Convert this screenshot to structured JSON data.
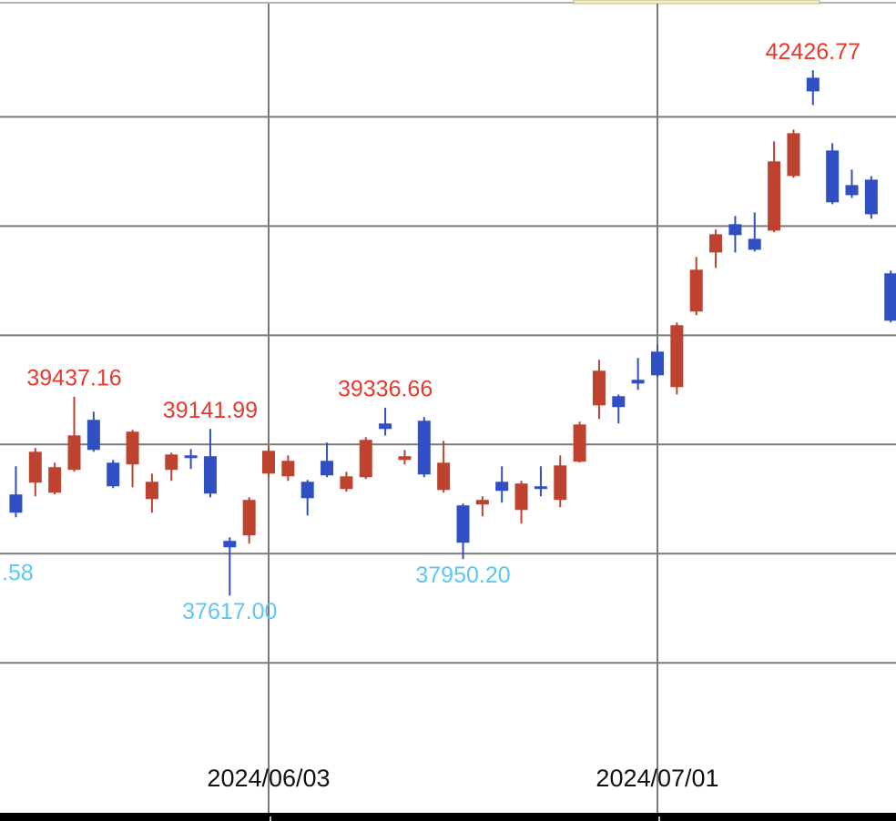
{
  "chart_data": {
    "type": "candlestick",
    "categories": [
      null,
      null,
      null,
      null,
      null,
      null,
      null,
      null,
      null,
      null,
      null,
      null,
      null,
      "2024/06/03",
      null,
      null,
      null,
      null,
      null,
      null,
      null,
      null,
      null,
      null,
      null,
      null,
      null,
      null,
      null,
      null,
      null,
      null,
      null,
      "2024/07/01",
      null,
      null,
      null,
      null,
      null,
      null,
      null,
      null,
      null,
      null,
      null,
      null
    ],
    "open": [
      38542,
      38650,
      38558,
      38767,
      39225,
      38833,
      38817,
      38500,
      38767,
      38900,
      38892,
      38117,
      38167,
      38733,
      38708,
      38658,
      38850,
      38592,
      38700,
      39192,
      38858,
      39217,
      38583,
      38442,
      38450,
      38658,
      38400,
      38617,
      38492,
      38842,
      39358,
      39442,
      39592,
      39850,
      39525,
      40217,
      40758,
      41017,
      40883,
      40958,
      41458,
      42358,
      41692,
      41375,
      41425,
      40567
    ],
    "high": [
      38800,
      38967,
      38833,
      39437.16,
      39300,
      38858,
      39133,
      38733,
      38925,
      38958,
      39141.99,
      38150,
      38517,
      38983,
      38900,
      38675,
      39017,
      38750,
      39067,
      39336.66,
      38950,
      39250,
      39033,
      38458,
      38525,
      38800,
      38667,
      38800,
      38900,
      39208,
      39775,
      39458,
      39792,
      39917,
      40117,
      40717,
      40967,
      41092,
      41125,
      41775,
      41883,
      42426.77,
      41758,
      41517,
      41458,
      40592
    ],
    "low": [
      38333,
      38525,
      38542,
      38750,
      38933,
      38600,
      38608,
      38375,
      38667,
      38775,
      38517,
      37617,
      38092,
      38708,
      38667,
      38350,
      38700,
      38567,
      38683,
      39083,
      38817,
      38700,
      38558,
      37950.2,
      38342,
      38467,
      38275,
      38525,
      38425,
      38833,
      39233,
      39192,
      39500,
      39617,
      39458,
      40183,
      40617,
      40758,
      40767,
      40942,
      41442,
      42108,
      41200,
      41258,
      41067,
      40117
    ],
    "close": [
      38375,
      38933,
      38792,
      39083,
      38950,
      38617,
      39117,
      38658,
      38908,
      38875,
      38550,
      38058,
      38492,
      38942,
      38850,
      38508,
      38717,
      38708,
      39042,
      39142,
      38892,
      38725,
      38833,
      38100,
      38492,
      38575,
      38642,
      38592,
      38808,
      39183,
      39675,
      39342,
      39558,
      39633,
      40092,
      40600,
      40925,
      40917,
      40783,
      41592,
      41850,
      42233,
      41217,
      41283,
      41108,
      40133
    ],
    "high_labels": [
      null,
      null,
      null,
      "39437.16",
      null,
      null,
      null,
      null,
      null,
      null,
      "39141.99",
      null,
      null,
      null,
      null,
      null,
      null,
      null,
      null,
      "39336.66",
      null,
      null,
      null,
      null,
      null,
      null,
      null,
      null,
      null,
      null,
      null,
      null,
      null,
      null,
      null,
      null,
      null,
      null,
      null,
      null,
      null,
      "42426.77",
      null,
      null,
      null,
      null
    ],
    "low_labels": [
      null,
      null,
      null,
      null,
      null,
      null,
      null,
      null,
      null,
      null,
      null,
      "37617.00",
      null,
      null,
      null,
      null,
      null,
      null,
      null,
      null,
      null,
      null,
      null,
      "37950.20",
      null,
      null,
      null,
      null,
      null,
      null,
      null,
      null,
      null,
      null,
      null,
      null,
      null,
      null,
      null,
      null,
      null,
      null,
      null,
      null,
      null,
      null
    ],
    "annotations": [
      ".58"
    ],
    "up_color": "#bd432f",
    "down_color": "#2f4fc2",
    "ylim": [
      35610,
      43070
    ],
    "ygrid": [
      37000,
      38000,
      39000,
      40000,
      41000,
      42000
    ],
    "grid": true
  }
}
